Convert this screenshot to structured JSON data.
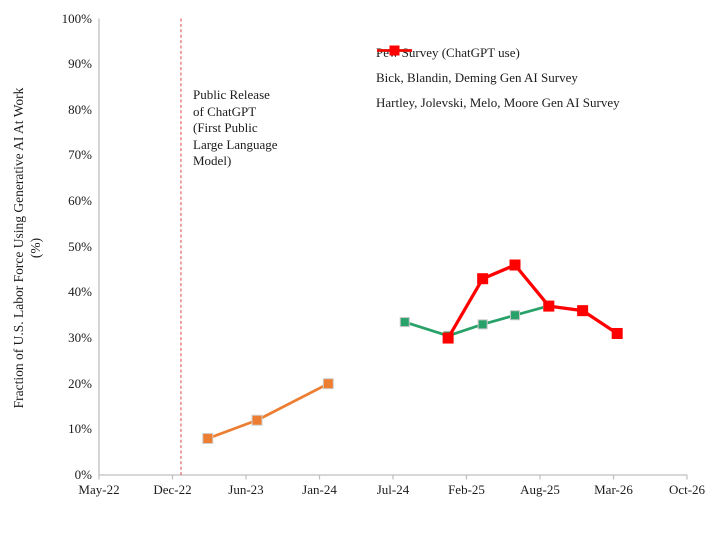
{
  "chart_data": {
    "type": "line",
    "title": "",
    "ylabel": "Fraction of U.S. Labor Force Using Generative AI At Work",
    "ylabel_unit_line": "(%)",
    "xlabel": "",
    "ylim": [
      0,
      100
    ],
    "grid": false,
    "legend_position": "top-right-inside",
    "y_tick_labels": [
      "0%",
      "10%",
      "20%",
      "30%",
      "40%",
      "50%",
      "60%",
      "70%",
      "80%",
      "90%",
      "100%"
    ],
    "x_tick_labels": [
      "May-22",
      "Dec-22",
      "Jun-23",
      "Jan-24",
      "Jul-24",
      "Feb-25",
      "Aug-25",
      "Mar-26",
      "Oct-26"
    ],
    "event_line": {
      "label": "Public Release\nof ChatGPT\n(First Public\nLarge Language\nModel)",
      "axis_position": 1.115,
      "color": "#e06666",
      "style": "dashed"
    },
    "series": [
      {
        "name": "Pew Survey (ChatGPT use)",
        "color": "#ED7D31",
        "marker": "square",
        "points": [
          {
            "x": "Mar-23",
            "t": 1.48,
            "value": 8
          },
          {
            "x": "Jul-23",
            "t": 2.15,
            "value": 12
          },
          {
            "x": "Feb-24",
            "t": 3.12,
            "value": 20
          }
        ]
      },
      {
        "name": "Bick, Blandin, Deming Gen AI Survey",
        "color": "#28A269",
        "marker": "square",
        "points": [
          {
            "x": "Aug-24",
            "t": 4.16,
            "value": 33.5
          },
          {
            "x": "Dec-24",
            "t": 4.75,
            "value": 30.5
          },
          {
            "x": "Mar-25",
            "t": 5.22,
            "value": 33
          },
          {
            "x": "Jun-25",
            "t": 5.66,
            "value": 35
          },
          {
            "x": "Sep-25",
            "t": 6.11,
            "value": 37
          }
        ]
      },
      {
        "name": "Hartley, Jolevski, Melo, Moore Gen AI Survey",
        "color": "#FE0000",
        "marker": "square",
        "points": [
          {
            "x": "Dec-24",
            "t": 4.75,
            "value": 30
          },
          {
            "x": "Mar-25",
            "t": 5.22,
            "value": 43
          },
          {
            "x": "Jun-25",
            "t": 5.66,
            "value": 46
          },
          {
            "x": "Sep-25",
            "t": 6.12,
            "value": 37
          },
          {
            "x": "Dec-25",
            "t": 6.58,
            "value": 36
          },
          {
            "x": "Mar-26",
            "t": 7.05,
            "value": 31
          }
        ]
      }
    ]
  }
}
